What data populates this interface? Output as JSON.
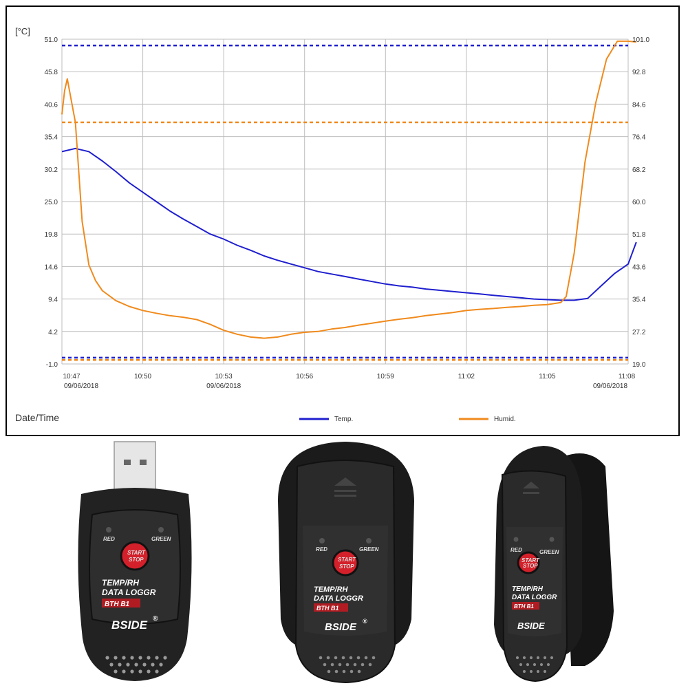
{
  "chart_data": {
    "type": "line",
    "y_unit": "[°C]",
    "x_title": "Date/Time",
    "x_ticks": [
      {
        "time": "10:47",
        "date": "09/06/2018"
      },
      {
        "time": "10:50",
        "date": ""
      },
      {
        "time": "10:53",
        "date": "09/06/2018"
      },
      {
        "time": "10:56",
        "date": ""
      },
      {
        "time": "10:59",
        "date": ""
      },
      {
        "time": "11:02",
        "date": ""
      },
      {
        "time": "11:05",
        "date": ""
      },
      {
        "time": "11:08",
        "date": "09/06/2018"
      }
    ],
    "x_range": [
      "10:47",
      "11:08"
    ],
    "y_left_ticks": [
      "51.0",
      "45.8",
      "40.6",
      "35.4",
      "30.2",
      "25.0",
      "19.8",
      "14.6",
      "9.4",
      "4.2",
      "-1.0"
    ],
    "y_right_ticks": [
      "101.0",
      "92.8",
      "84.6",
      "76.4",
      "68.2",
      "60.0",
      "51.8",
      "43.6",
      "35.4",
      "27.2",
      "19.0"
    ],
    "y_left_range": [
      -1.0,
      51.0
    ],
    "y_right_range": [
      19.0,
      101.0
    ],
    "grid": true,
    "legend_position": "bottom",
    "reference_lines": [
      {
        "axis": "left",
        "value": 50.0,
        "color": "#1f1fcf",
        "style": "dashed"
      },
      {
        "axis": "left",
        "value": 0.0,
        "color": "#1f1fcf",
        "style": "dashed"
      },
      {
        "axis": "right",
        "value": 80.0,
        "color": "#f08a1c",
        "style": "dashed"
      },
      {
        "axis": "right",
        "value": 20.0,
        "color": "#f08a1c",
        "style": "dashed"
      }
    ],
    "series": [
      {
        "name": "Temp.",
        "axis": "left",
        "color": "#1f1fcf",
        "x": [
          0,
          0.5,
          1,
          1.5,
          2,
          2.5,
          3,
          3.5,
          4,
          4.5,
          5,
          5.5,
          6,
          6.5,
          7,
          7.5,
          8,
          8.5,
          9,
          9.5,
          10,
          10.5,
          11,
          11.5,
          12,
          12.5,
          13,
          13.5,
          14,
          14.5,
          15,
          15.5,
          16,
          16.5,
          17,
          17.5,
          18,
          18.5,
          19,
          19.5,
          20,
          20.5,
          21,
          21.3
        ],
        "values": [
          33.0,
          33.5,
          33.0,
          31.5,
          29.8,
          28.0,
          26.5,
          25.0,
          23.5,
          22.2,
          21.0,
          19.8,
          19.0,
          18.0,
          17.2,
          16.3,
          15.6,
          15.0,
          14.4,
          13.8,
          13.4,
          13.0,
          12.6,
          12.2,
          11.8,
          11.5,
          11.3,
          11.0,
          10.8,
          10.6,
          10.4,
          10.2,
          10.0,
          9.8,
          9.6,
          9.4,
          9.3,
          9.2,
          9.2,
          9.5,
          11.5,
          13.5,
          15.0,
          18.5
        ]
      },
      {
        "name": "Humid.",
        "axis": "right",
        "color": "#f08a1c",
        "x": [
          0,
          0.1,
          0.2,
          0.5,
          0.75,
          1,
          1.25,
          1.5,
          2,
          2.5,
          3,
          3.5,
          4,
          4.5,
          5,
          5.5,
          6,
          6.5,
          7,
          7.5,
          8,
          8.5,
          9,
          9.5,
          10,
          10.5,
          11,
          11.5,
          12,
          12.5,
          13,
          13.5,
          14,
          14.5,
          15,
          15.5,
          16,
          16.5,
          17,
          17.5,
          18,
          18.5,
          18.7,
          19,
          19.4,
          19.8,
          20.2,
          20.6,
          21.0,
          21.3
        ],
        "values": [
          82.0,
          88.0,
          91.0,
          80.0,
          55.0,
          44.0,
          40.0,
          37.5,
          35.0,
          33.5,
          32.5,
          31.8,
          31.2,
          30.8,
          30.2,
          29.0,
          27.5,
          26.5,
          25.8,
          25.5,
          25.8,
          26.5,
          27.0,
          27.2,
          27.8,
          28.2,
          28.8,
          29.3,
          29.8,
          30.3,
          30.7,
          31.2,
          31.6,
          32.0,
          32.5,
          32.8,
          33.0,
          33.3,
          33.5,
          33.8,
          34.0,
          34.5,
          36.0,
          47.0,
          70.0,
          85.0,
          96.0,
          100.5,
          100.5,
          100.3
        ]
      }
    ]
  },
  "devices": [
    {
      "red_label": "RED",
      "green_label": "GREEN",
      "button_line1": "START",
      "button_line2": "STOP",
      "line1": "TEMP/RH",
      "line2": "DATA LOGGR",
      "model": "BTH B1",
      "brand": "BSIDE",
      "reg": "®"
    },
    {
      "red_label": "RED",
      "green_label": "GREEN",
      "button_line1": "START",
      "button_line2": "STOP",
      "line1": "TEMP/RH",
      "line2": "DATA LOGGR",
      "model": "BTH B1",
      "brand": "BSIDE",
      "reg": "®"
    },
    {
      "red_label": "RED",
      "green_label": "GREEN",
      "button_line1": "START",
      "button_line2": "STOP",
      "line1": "TEMP/RH",
      "line2": "DATA LOGGR",
      "model": "BTH B1",
      "brand": "BSIDE",
      "reg": ""
    }
  ],
  "colors": {
    "temp": "#1f1fcf",
    "humid": "#f08a1c",
    "grid": "#bdbdbd",
    "device_body": "#222222"
  }
}
